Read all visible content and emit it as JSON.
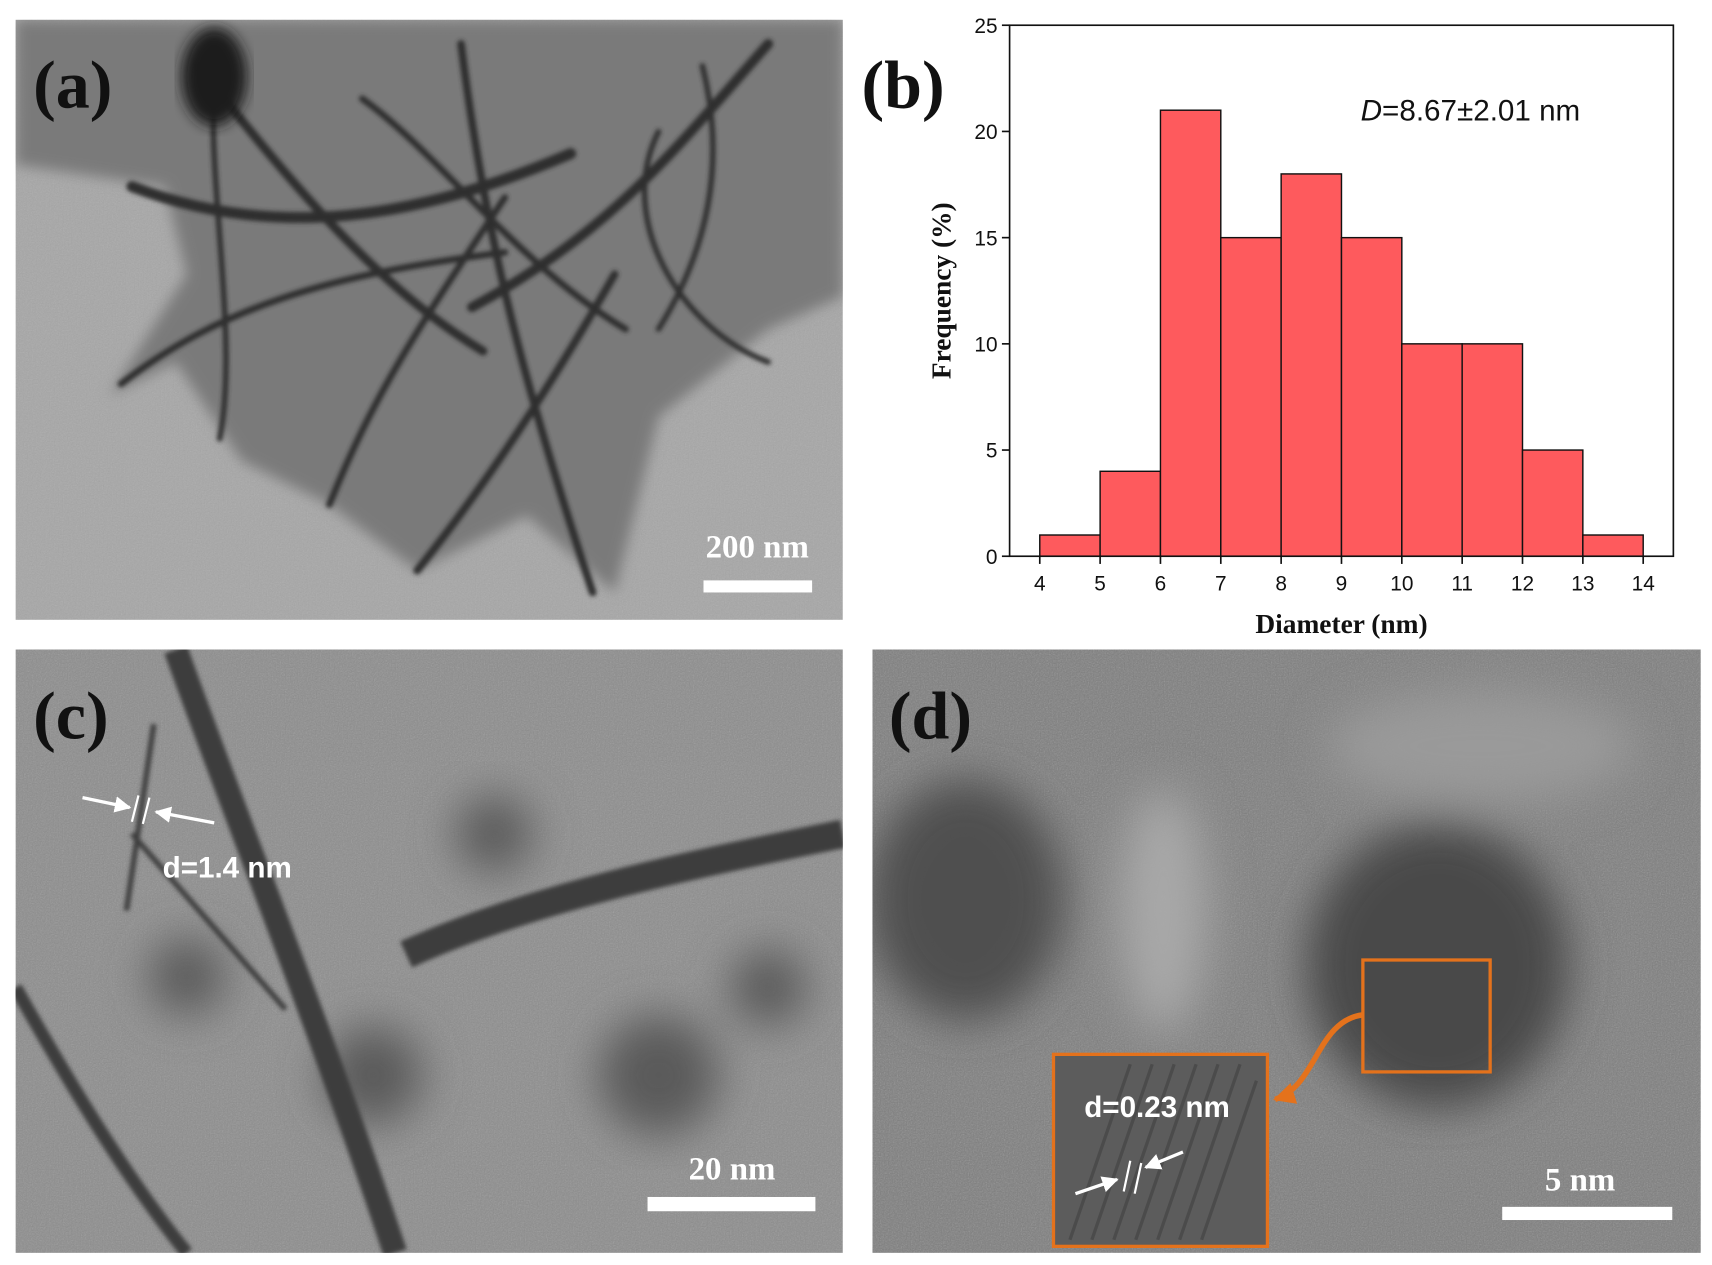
{
  "panels": [
    {
      "label": "(a)",
      "scale_bar": "200 nm"
    },
    {
      "label": "(b)"
    },
    {
      "label": "(c)",
      "scale_bar": "20 nm",
      "annotation": "d=1.4 nm"
    },
    {
      "label": "(d)",
      "scale_bar": "5 nm",
      "annotation": "d=0.23 nm"
    }
  ],
  "chart_data": {
    "type": "histogram",
    "xlabel": "Diameter (nm)",
    "ylabel": "Frequency (%)",
    "annotation_symbol": "D",
    "annotation": "=8.67±2.01 nm",
    "bins": [
      4,
      5,
      6,
      7,
      8,
      9,
      10,
      11,
      12,
      13,
      14
    ],
    "values": [
      1,
      4,
      21,
      15,
      18,
      15,
      10,
      10,
      5,
      1
    ],
    "color": "#fe5a5d",
    "xlim": [
      3.5,
      14.5
    ],
    "ylim": [
      0,
      25
    ],
    "xticks": [
      4,
      5,
      6,
      7,
      8,
      9,
      10,
      11,
      12,
      13,
      14
    ],
    "yticks": [
      0,
      5,
      10,
      15,
      20,
      25
    ]
  }
}
